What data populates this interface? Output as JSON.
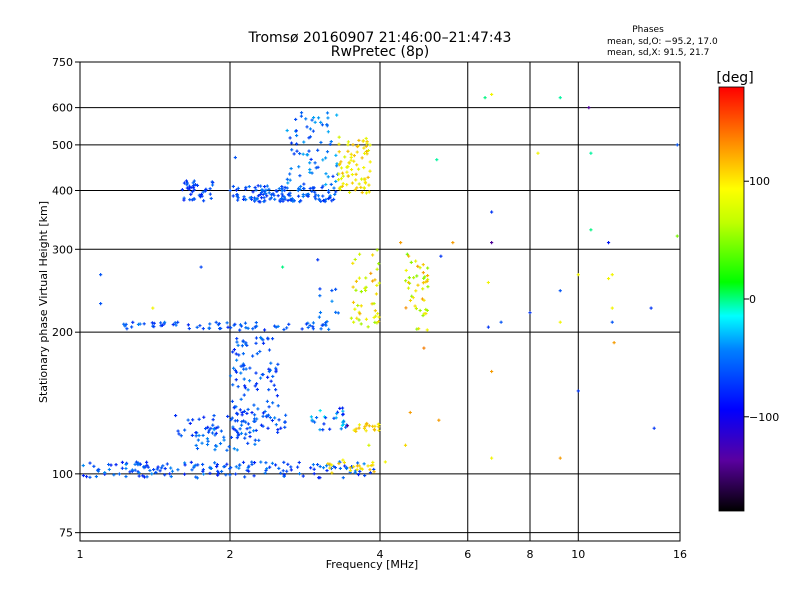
{
  "chart_data": {
    "type": "scatter",
    "title": "Tromsø 20160907 21:46:00–21:47:43",
    "subtitle": "RwPretec (8p)",
    "phases": {
      "title": "Phases",
      "o_line": "mean, sd,O: −95.2, 17.0",
      "x_line": "mean, sd,X:  91.5, 21.7"
    },
    "xlabel": "Frequency [MHz]",
    "ylabel": "Stationary phase Virtual Height [km]",
    "xscale": "log",
    "yscale": "log",
    "xlim": [
      1,
      16
    ],
    "ylim": [
      72,
      750
    ],
    "xticks": [
      1,
      2,
      4,
      6,
      8,
      10,
      16
    ],
    "yticks": [
      75,
      100,
      200,
      300,
      400,
      500,
      600,
      750
    ],
    "grid": true,
    "colorbar": {
      "label": "[deg]",
      "range": [
        -180,
        180
      ],
      "ticks": [
        100,
        0,
        -100
      ]
    },
    "clusters": [
      {
        "x": [
          1.0,
          3.9
        ],
        "y": [
          98,
          106
        ],
        "n": 170,
        "phase": -110,
        "spread": 18
      },
      {
        "x": [
          3.1,
          3.9
        ],
        "y": [
          100,
          107
        ],
        "n": 22,
        "phase": 110,
        "spread": 12
      },
      {
        "x": [
          1.7,
          2.3
        ],
        "y": [
          112,
          125
        ],
        "n": 40,
        "phase": -105,
        "spread": 15
      },
      {
        "x": [
          1.55,
          2.6
        ],
        "y": [
          120,
          135
        ],
        "n": 50,
        "phase": -115,
        "spread": 12
      },
      {
        "x": [
          2.0,
          2.5
        ],
        "y": [
          125,
          195
        ],
        "n": 110,
        "phase": -110,
        "spread": 15
      },
      {
        "x": [
          2.9,
          3.5
        ],
        "y": [
          124,
          138
        ],
        "n": 30,
        "phase": -100,
        "spread": 40
      },
      {
        "x": [
          3.5,
          4.0
        ],
        "y": [
          123,
          128
        ],
        "n": 20,
        "phase": 110,
        "spread": 15
      },
      {
        "x": [
          1.2,
          3.2
        ],
        "y": [
          202,
          210
        ],
        "n": 70,
        "phase": -110,
        "spread": 15
      },
      {
        "x": [
          3.0,
          3.3
        ],
        "y": [
          205,
          250
        ],
        "n": 12,
        "phase": -105,
        "spread": 15
      },
      {
        "x": [
          3.5,
          4.0
        ],
        "y": [
          205,
          300
        ],
        "n": 45,
        "phase": 100,
        "spread": 30
      },
      {
        "x": [
          4.5,
          5.0
        ],
        "y": [
          200,
          300
        ],
        "n": 45,
        "phase": 100,
        "spread": 40
      },
      {
        "x": [
          1.6,
          1.85
        ],
        "y": [
          380,
          420
        ],
        "n": 40,
        "phase": -115,
        "spread": 12
      },
      {
        "x": [
          2.0,
          3.3
        ],
        "y": [
          378,
          410
        ],
        "n": 140,
        "phase": -110,
        "spread": 15
      },
      {
        "x": [
          2.6,
          3.3
        ],
        "y": [
          410,
          590
        ],
        "n": 70,
        "phase": -100,
        "spread": 20
      },
      {
        "x": [
          3.3,
          3.85
        ],
        "y": [
          395,
          520
        ],
        "n": 80,
        "phase": 105,
        "spread": 15
      }
    ],
    "points": [
      {
        "x": 1.1,
        "y": 265,
        "phase": -110
      },
      {
        "x": 1.1,
        "y": 230,
        "phase": -110
      },
      {
        "x": 1.4,
        "y": 225,
        "phase": 100
      },
      {
        "x": 1.75,
        "y": 275,
        "phase": -115
      },
      {
        "x": 2.05,
        "y": 470,
        "phase": -110
      },
      {
        "x": 2.25,
        "y": 205,
        "phase": -110
      },
      {
        "x": 2.55,
        "y": 275,
        "phase": -20
      },
      {
        "x": 3.0,
        "y": 285,
        "phase": -120
      },
      {
        "x": 3.8,
        "y": 115,
        "phase": 90
      },
      {
        "x": 4.6,
        "y": 135,
        "phase": 130
      },
      {
        "x": 4.9,
        "y": 185,
        "phase": 140
      },
      {
        "x": 4.1,
        "y": 106,
        "phase": 100
      },
      {
        "x": 4.5,
        "y": 115,
        "phase": 110
      },
      {
        "x": 4.4,
        "y": 310,
        "phase": 130
      },
      {
        "x": 5.2,
        "y": 465,
        "phase": -30
      },
      {
        "x": 5.25,
        "y": 130,
        "phase": 130
      },
      {
        "x": 5.3,
        "y": 290,
        "phase": -120
      },
      {
        "x": 5.6,
        "y": 310,
        "phase": 130
      },
      {
        "x": 6.5,
        "y": 630,
        "phase": -20
      },
      {
        "x": 6.7,
        "y": 640,
        "phase": 100
      },
      {
        "x": 6.7,
        "y": 360,
        "phase": -120
      },
      {
        "x": 6.7,
        "y": 310,
        "phase": -140
      },
      {
        "x": 6.6,
        "y": 255,
        "phase": 100
      },
      {
        "x": 6.6,
        "y": 205,
        "phase": -120
      },
      {
        "x": 7.0,
        "y": 210,
        "phase": -110
      },
      {
        "x": 6.7,
        "y": 165,
        "phase": 130
      },
      {
        "x": 6.7,
        "y": 108,
        "phase": 100
      },
      {
        "x": 8.3,
        "y": 480,
        "phase": 100
      },
      {
        "x": 8.0,
        "y": 220,
        "phase": -120
      },
      {
        "x": 9.2,
        "y": 630,
        "phase": -30
      },
      {
        "x": 9.2,
        "y": 245,
        "phase": -110
      },
      {
        "x": 9.2,
        "y": 210,
        "phase": 100
      },
      {
        "x": 9.2,
        "y": 108,
        "phase": 130
      },
      {
        "x": 10.5,
        "y": 600,
        "phase": -140
      },
      {
        "x": 10.6,
        "y": 480,
        "phase": -30
      },
      {
        "x": 10.6,
        "y": 330,
        "phase": -20
      },
      {
        "x": 11.5,
        "y": 310,
        "phase": -130
      },
      {
        "x": 11.5,
        "y": 260,
        "phase": 100
      },
      {
        "x": 11.7,
        "y": 225,
        "phase": 100
      },
      {
        "x": 11.7,
        "y": 210,
        "phase": -110
      },
      {
        "x": 11.8,
        "y": 190,
        "phase": 130
      },
      {
        "x": 10.0,
        "y": 265,
        "phase": 100
      },
      {
        "x": 10.0,
        "y": 150,
        "phase": -120
      },
      {
        "x": 14.0,
        "y": 225,
        "phase": -120
      },
      {
        "x": 14.2,
        "y": 125,
        "phase": -120
      },
      {
        "x": 15.8,
        "y": 320,
        "phase": 60
      },
      {
        "x": 15.8,
        "y": 500,
        "phase": -110
      },
      {
        "x": 11.7,
        "y": 265,
        "phase": 100
      }
    ]
  }
}
